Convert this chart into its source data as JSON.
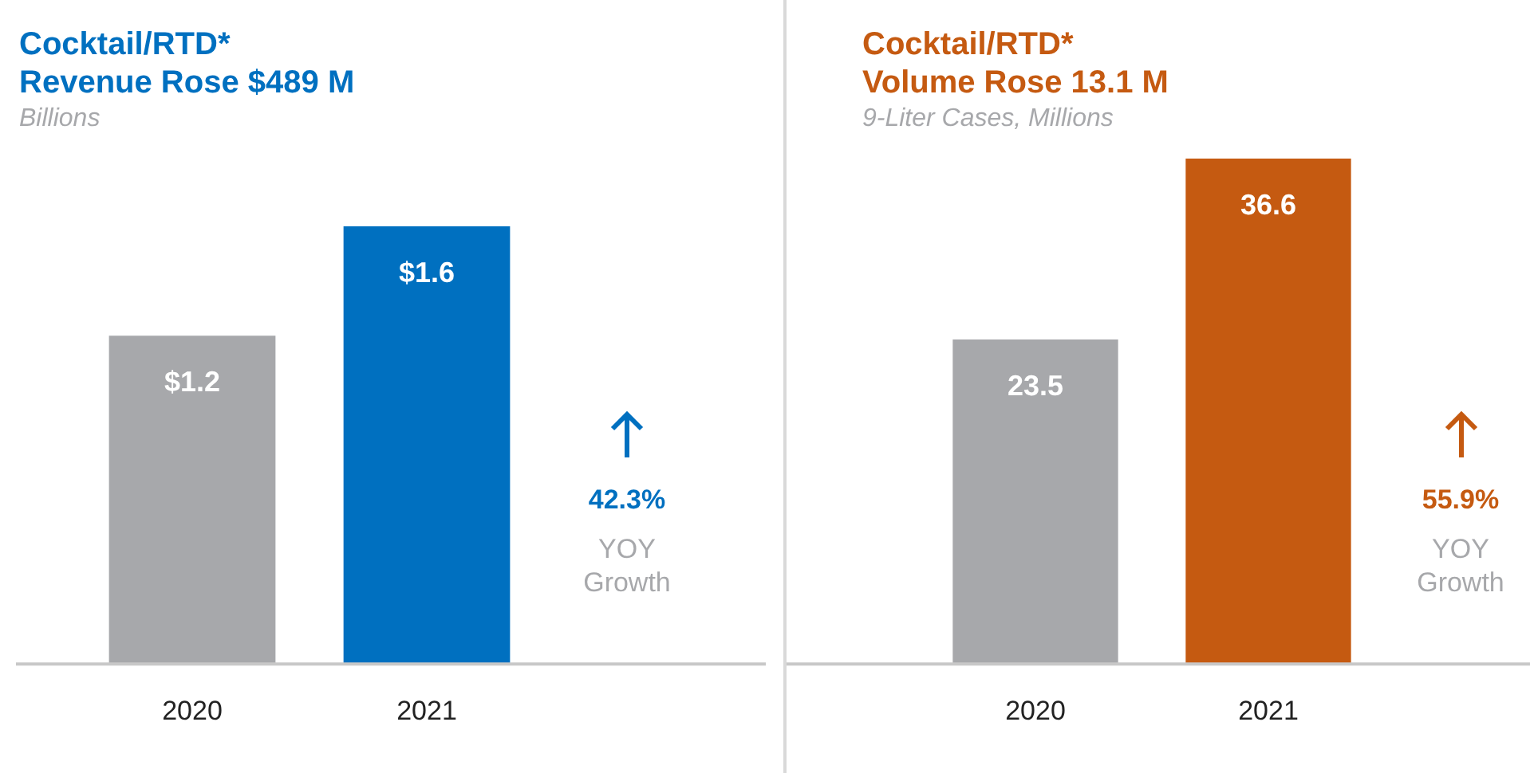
{
  "chart_data": [
    {
      "type": "bar",
      "title": "Cocktail/RTD*\nRevenue Rose $489 M",
      "subtitle": "Billions",
      "categories": [
        "2020",
        "2021"
      ],
      "values": [
        1.2,
        1.6
      ],
      "colors": [
        "#a7a8ab",
        "#0070c0"
      ],
      "value_labels": [
        "$1.2",
        "$1.6"
      ],
      "tick_labels": "x",
      "annotations": [
        "42.3%",
        "YOY\nGrowth"
      ]
    },
    {
      "type": "bar",
      "title": "Cocktail/RTD*\nVolume Rose 13.1 M",
      "subtitle": "9-Liter Cases, Millions",
      "categories": [
        "2020",
        "2021"
      ],
      "values": [
        23.5,
        36.6
      ],
      "colors": [
        "#a7a8ab",
        "#c55a11"
      ],
      "data_labels": true,
      "tick_labels": "x",
      "annotations": [
        "55.9%",
        "YOY\nGrowth"
      ]
    }
  ]
}
